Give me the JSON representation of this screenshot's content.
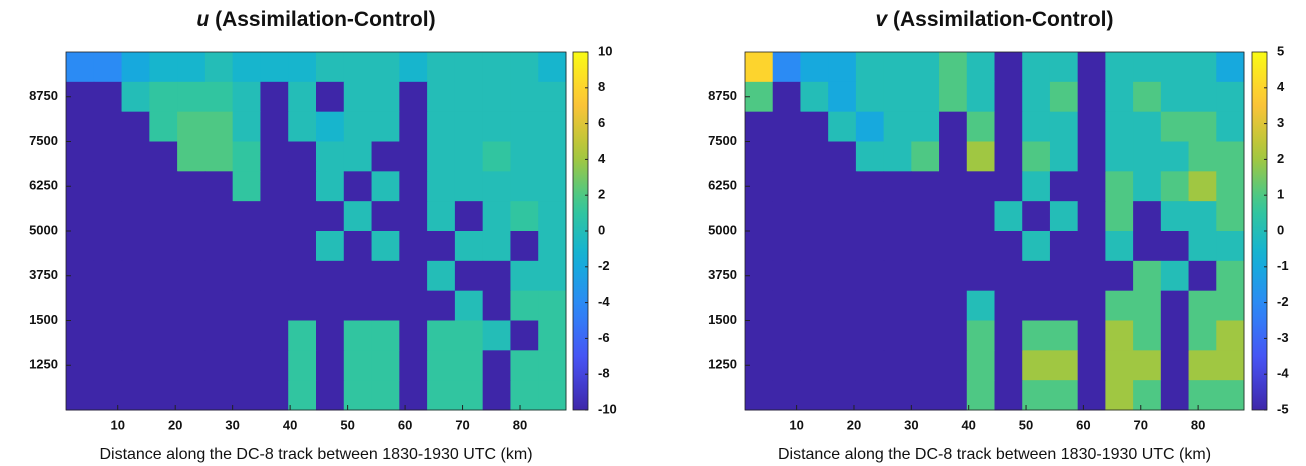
{
  "chart_data": [
    {
      "type": "heatmap",
      "variable": "u",
      "title": "(Assimilation-Control)",
      "xlabel": "Distance along the DC-8 track between 1830-1930 UTC (km)",
      "xlim": [
        1,
        88
      ],
      "xticks": [
        10,
        20,
        30,
        40,
        50,
        60,
        70,
        80
      ],
      "ylim": [
        0,
        8
      ],
      "yticks": [
        {
          "value": 1,
          "label": "1250"
        },
        {
          "value": 2,
          "label": "1500"
        },
        {
          "value": 3,
          "label": "3750"
        },
        {
          "value": 4,
          "label": "5000"
        },
        {
          "value": 5,
          "label": "6250"
        },
        {
          "value": 6,
          "label": "7500"
        },
        {
          "value": 7,
          "label": "8750"
        }
      ],
      "colormap": "parula",
      "zlim": [
        -10,
        10
      ],
      "zticks": [
        10,
        8,
        6,
        4,
        2,
        0,
        -2,
        -4,
        -6,
        -8,
        -10
      ],
      "z": [
        [
          -4,
          -4,
          -2,
          -1,
          -1,
          0,
          -1,
          -1,
          -1,
          0,
          0,
          0,
          -1,
          0,
          0,
          0,
          0,
          -1
        ],
        [
          -10,
          -10,
          0,
          1,
          1,
          1,
          0,
          -10,
          0,
          -10,
          0,
          0,
          -10,
          0,
          0,
          0,
          0,
          0
        ],
        [
          -10,
          -10,
          -10,
          1,
          2,
          2,
          0,
          -10,
          0,
          -1,
          0,
          0,
          -10,
          0,
          0,
          0,
          0,
          0
        ],
        [
          -10,
          -10,
          -10,
          -10,
          2,
          2,
          1,
          -10,
          -10,
          0,
          0,
          -10,
          -10,
          0,
          0,
          1,
          0,
          0
        ],
        [
          -10,
          -10,
          -10,
          -10,
          -10,
          -10,
          1,
          -10,
          -10,
          0,
          -10,
          0,
          -10,
          0,
          0,
          0,
          0,
          0
        ],
        [
          -10,
          -10,
          -10,
          -10,
          -10,
          -10,
          -10,
          -10,
          -10,
          -10,
          0,
          -10,
          -10,
          0,
          -10,
          0,
          1,
          0
        ],
        [
          -10,
          -10,
          -10,
          -10,
          -10,
          -10,
          -10,
          -10,
          -10,
          0,
          -10,
          0,
          -10,
          -10,
          0,
          0,
          -10,
          0
        ],
        [
          -10,
          -10,
          -10,
          -10,
          -10,
          -10,
          -10,
          -10,
          -10,
          -10,
          -10,
          -10,
          -10,
          0,
          -10,
          -10,
          0,
          0
        ],
        [
          -10,
          -10,
          -10,
          -10,
          -10,
          -10,
          -10,
          -10,
          -10,
          -10,
          -10,
          -10,
          -10,
          -10,
          0,
          -10,
          1,
          1
        ],
        [
          -10,
          -10,
          -10,
          -10,
          -10,
          -10,
          -10,
          -10,
          1,
          -10,
          1,
          1,
          -10,
          1,
          1,
          0,
          -10,
          1
        ],
        [
          -10,
          -10,
          -10,
          -10,
          -10,
          -10,
          -10,
          -10,
          1,
          -10,
          1,
          1,
          -10,
          1,
          1,
          -10,
          1,
          1
        ],
        [
          -10,
          -10,
          -10,
          -10,
          -10,
          -10,
          -10,
          -10,
          1,
          -10,
          1,
          1,
          -10,
          1,
          1,
          -10,
          1,
          1
        ]
      ]
    },
    {
      "type": "heatmap",
      "variable": "v",
      "title": "(Assimilation-Control)",
      "xlabel": "Distance along the DC-8 track between 1830-1930 UTC (km)",
      "xlim": [
        1,
        88
      ],
      "xticks": [
        10,
        20,
        30,
        40,
        50,
        60,
        70,
        80
      ],
      "ylim": [
        0,
        8
      ],
      "yticks": [
        {
          "value": 1,
          "label": "1250"
        },
        {
          "value": 2,
          "label": "1500"
        },
        {
          "value": 3,
          "label": "3750"
        },
        {
          "value": 4,
          "label": "5000"
        },
        {
          "value": 5,
          "label": "6250"
        },
        {
          "value": 6,
          "label": "7500"
        },
        {
          "value": 7,
          "label": "8750"
        }
      ],
      "colormap": "parula",
      "zlim": [
        -5,
        5
      ],
      "zticks": [
        5,
        4,
        3,
        2,
        1,
        0,
        -1,
        -2,
        -3,
        -4,
        -5
      ],
      "z": [
        [
          4,
          -2,
          -1,
          -1,
          0,
          0,
          0,
          1,
          0,
          -5,
          0,
          0,
          -5,
          0,
          0,
          0,
          0,
          -1
        ],
        [
          1,
          -5,
          0,
          -1,
          0,
          0,
          0,
          1,
          0,
          -5,
          0,
          1,
          -5,
          0,
          1,
          0,
          0,
          0
        ],
        [
          -5,
          -5,
          -5,
          0,
          -1,
          0,
          0,
          -5,
          1,
          -5,
          0,
          0,
          -5,
          0,
          0,
          1,
          1,
          0
        ],
        [
          -5,
          -5,
          -5,
          -5,
          0,
          0,
          1,
          -5,
          2,
          -5,
          1,
          0,
          -5,
          0,
          0,
          0,
          1,
          1
        ],
        [
          -5,
          -5,
          -5,
          -5,
          -5,
          -5,
          -5,
          -5,
          -5,
          -5,
          0,
          -5,
          -5,
          1,
          0,
          1,
          2,
          1
        ],
        [
          -5,
          -5,
          -5,
          -5,
          -5,
          -5,
          -5,
          -5,
          -5,
          0,
          -5,
          0,
          -5,
          1,
          -5,
          0,
          0,
          1
        ],
        [
          -5,
          -5,
          -5,
          -5,
          -5,
          -5,
          -5,
          -5,
          -5,
          -5,
          0,
          -5,
          -5,
          0,
          -5,
          -5,
          0,
          0
        ],
        [
          -5,
          -5,
          -5,
          -5,
          -5,
          -5,
          -5,
          -5,
          -5,
          -5,
          -5,
          -5,
          -5,
          -5,
          1,
          0,
          -5,
          1
        ],
        [
          -5,
          -5,
          -5,
          -5,
          -5,
          -5,
          -5,
          -5,
          0,
          -5,
          -5,
          -5,
          -5,
          1,
          1,
          -5,
          1,
          1
        ],
        [
          -5,
          -5,
          -5,
          -5,
          -5,
          -5,
          -5,
          -5,
          1,
          -5,
          1,
          1,
          -5,
          2,
          1,
          -5,
          1,
          2
        ],
        [
          -5,
          -5,
          -5,
          -5,
          -5,
          -5,
          -5,
          -5,
          1,
          -5,
          2,
          2,
          -5,
          2,
          2,
          -5,
          2,
          2
        ],
        [
          -5,
          -5,
          -5,
          -5,
          -5,
          -5,
          -5,
          -5,
          1,
          -5,
          1,
          1,
          -5,
          2,
          1,
          -5,
          1,
          1
        ]
      ]
    }
  ]
}
